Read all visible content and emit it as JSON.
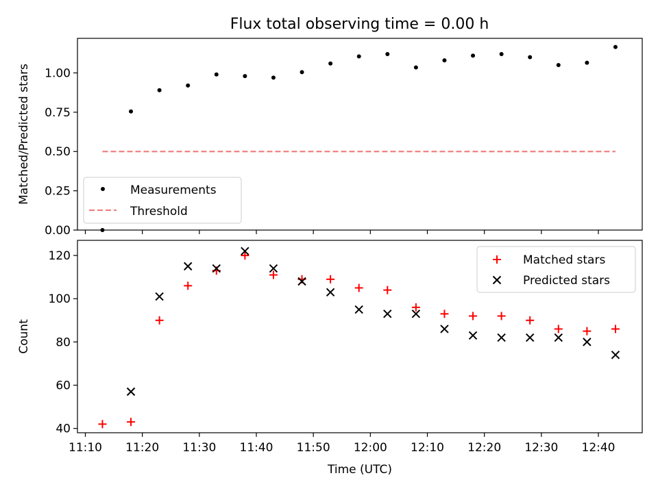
{
  "title": "Flux total observing time = 0.00 h",
  "chart_data": [
    {
      "type": "scatter",
      "ylabel": "Matched/Predicted stars",
      "xlabel": "",
      "ylim": [
        0,
        1.22
      ],
      "yticks": [
        0.0,
        0.25,
        0.5,
        0.75,
        1.0
      ],
      "ytick_labels": [
        "0.00",
        "0.25",
        "0.50",
        "0.75",
        "1.00"
      ],
      "grid": false,
      "legend_position": "lower-left",
      "series": [
        {
          "name": "Measurements",
          "kind": "scatter",
          "marker": "dot",
          "color": "#000000",
          "x": [
            "11:13",
            "11:18",
            "11:23",
            "11:28",
            "11:33",
            "11:38",
            "11:43",
            "11:48",
            "11:53",
            "11:58",
            "12:03",
            "12:08",
            "12:13",
            "12:18",
            "12:23",
            "12:28",
            "12:33",
            "12:38",
            "12:43"
          ],
          "y": [
            0.0,
            0.755,
            0.89,
            0.92,
            0.99,
            0.98,
            0.97,
            1.005,
            1.06,
            1.105,
            1.12,
            1.035,
            1.08,
            1.11,
            1.12,
            1.1,
            1.05,
            1.065,
            1.165
          ]
        },
        {
          "name": "Threshold",
          "kind": "line",
          "style": "dashed",
          "color": "#f08080",
          "x": [
            "11:13",
            "12:43"
          ],
          "y": [
            0.5,
            0.5
          ]
        }
      ]
    },
    {
      "type": "scatter",
      "ylabel": "Count",
      "xlabel": "Time (UTC)",
      "ylim": [
        38,
        127
      ],
      "yticks": [
        40,
        60,
        80,
        100,
        120
      ],
      "ytick_labels": [
        "40",
        "60",
        "80",
        "100",
        "120"
      ],
      "xticks": [
        "11:10",
        "11:20",
        "11:30",
        "11:40",
        "11:50",
        "12:00",
        "12:10",
        "12:20",
        "12:30",
        "12:40"
      ],
      "grid": false,
      "legend_position": "upper-right",
      "series": [
        {
          "name": "Matched stars",
          "marker": "plus",
          "color": "#ff0000",
          "x": [
            "11:13",
            "11:18",
            "11:23",
            "11:28",
            "11:33",
            "11:38",
            "11:43",
            "11:48",
            "11:53",
            "11:58",
            "12:03",
            "12:08",
            "12:13",
            "12:18",
            "12:23",
            "12:28",
            "12:33",
            "12:38",
            "12:43"
          ],
          "y": [
            42,
            43,
            90,
            106,
            113,
            120,
            111,
            109,
            109,
            105,
            104,
            96,
            93,
            92,
            92,
            90,
            86,
            85,
            86
          ]
        },
        {
          "name": "Predicted stars",
          "marker": "x",
          "color": "#000000",
          "x": [
            "11:13",
            "11:18",
            "11:23",
            "11:28",
            "11:33",
            "11:38",
            "11:43",
            "11:48",
            "11:53",
            "11:58",
            "12:03",
            "12:08",
            "12:13",
            "12:18",
            "12:23",
            "12:28",
            "12:33",
            "12:38",
            "12:43"
          ],
          "y": [
            null,
            57,
            101,
            115,
            114,
            122,
            114,
            108,
            103,
            95,
            93,
            93,
            86,
            83,
            82,
            82,
            82,
            80,
            74
          ]
        }
      ]
    }
  ]
}
